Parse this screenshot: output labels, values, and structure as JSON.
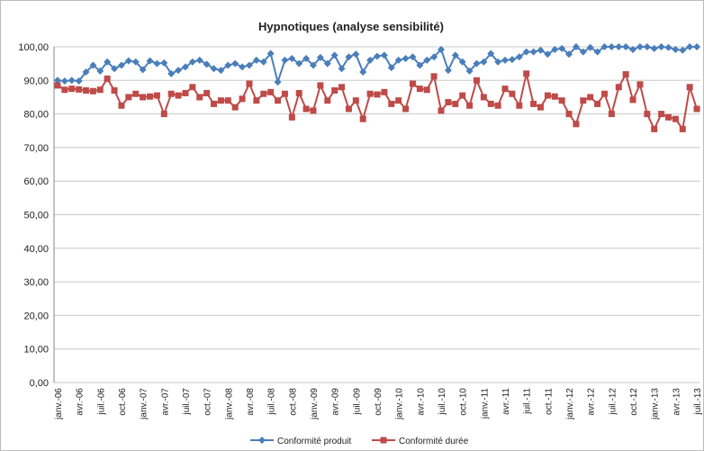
{
  "chart_data": {
    "type": "line",
    "title": "Hypnotiques (analyse sensibilité)",
    "categories": [
      "janv.-06",
      null,
      null,
      "avr.-06",
      null,
      null,
      "juil.-06",
      null,
      null,
      "oct.-06",
      null,
      null,
      "janv.-07",
      null,
      null,
      "avr.-07",
      null,
      null,
      "juil.-07",
      null,
      null,
      "oct.-07",
      null,
      null,
      "janv.-08",
      null,
      null,
      "avr.-08",
      null,
      null,
      "juil.-08",
      null,
      null,
      "oct.-08",
      null,
      null,
      "janv.-09",
      null,
      null,
      "avr.-09",
      null,
      null,
      "juil.-09",
      null,
      null,
      "oct.-09",
      null,
      null,
      "janv.-10",
      null,
      null,
      "avr.-10",
      null,
      null,
      "juil.-10",
      null,
      null,
      "oct.-10",
      null,
      null,
      "janv.-11",
      null,
      null,
      "avr.-11",
      null,
      null,
      "juil.-11",
      null,
      null,
      "oct.-11",
      null,
      null,
      "janv.-12",
      null,
      null,
      "avr.-12",
      null,
      null,
      "juil.-12",
      null,
      null,
      "oct.-12",
      null,
      null,
      "janv.-13",
      null,
      null,
      "avr.-13",
      null,
      null,
      "juil.-13"
    ],
    "series": [
      {
        "name": "Conformité produit",
        "color": "#4a7ebb",
        "marker": "diamond",
        "values": [
          90,
          89.8,
          90,
          89.8,
          92.5,
          94.5,
          92.8,
          95.5,
          93.5,
          94.5,
          95.8,
          95.5,
          93.2,
          95.8,
          95,
          95.2,
          92,
          93,
          94,
          95.5,
          96,
          94.8,
          93.5,
          93,
          94.5,
          95,
          94,
          94.5,
          96,
          95.5,
          98,
          89.5,
          96,
          96.5,
          95,
          96.5,
          94.5,
          96.8,
          95,
          97.5,
          93.5,
          97,
          97.8,
          92.5,
          96,
          97.2,
          97.5,
          93.8,
          96,
          96.5,
          97,
          94.5,
          96,
          97,
          99.2,
          93,
          97.5,
          95.5,
          92.8,
          95,
          95.5,
          98,
          95.5,
          96,
          96.2,
          97,
          98.5,
          98.5,
          99,
          97.8,
          99.2,
          99.5,
          97.8,
          100,
          98.5,
          99.8,
          98.5,
          100,
          100,
          100,
          100,
          99.2,
          100,
          100,
          99.5,
          100,
          99.8,
          99.2,
          99,
          100,
          100
        ]
      },
      {
        "name": "Conformité durée",
        "color": "#be4b48",
        "marker": "square",
        "values": [
          88.5,
          87.2,
          87.5,
          87.3,
          87,
          86.8,
          87.2,
          90.5,
          87,
          82.5,
          85,
          86,
          85,
          85.2,
          85.5,
          80,
          86,
          85.5,
          86.2,
          88,
          85,
          86.2,
          83,
          84,
          84,
          82,
          84.5,
          89,
          84,
          86,
          86.5,
          84,
          86,
          79,
          86.2,
          81.5,
          81,
          88.5,
          84,
          87,
          88,
          81.5,
          84,
          78.5,
          86,
          85.8,
          86.5,
          83,
          84,
          81.5,
          89,
          87.5,
          87.2,
          91.2,
          81,
          83.5,
          83,
          85.5,
          82.5,
          90,
          85,
          83,
          82.5,
          87.5,
          86,
          82.5,
          92,
          83,
          82,
          85.5,
          85.2,
          84,
          80,
          77,
          84,
          85,
          83,
          86,
          80,
          88,
          91.8,
          84.2,
          88.8,
          80,
          75.5,
          80,
          79,
          78.5,
          75.5,
          88,
          81.5
        ]
      }
    ],
    "ylim": [
      0,
      100
    ],
    "yticks": [
      {
        "value": 0,
        "label": "0,00"
      },
      {
        "value": 10,
        "label": "10,00"
      },
      {
        "value": 20,
        "label": "20,00"
      },
      {
        "value": 30,
        "label": "30,00"
      },
      {
        "value": 40,
        "label": "40,00"
      },
      {
        "value": 50,
        "label": "50,00"
      },
      {
        "value": 60,
        "label": "60,00"
      },
      {
        "value": 70,
        "label": "70,00"
      },
      {
        "value": 80,
        "label": "80,00"
      },
      {
        "value": 90,
        "label": "90,00"
      },
      {
        "value": 100,
        "label": "100,00"
      }
    ],
    "grid": true,
    "legend": "bottom"
  }
}
